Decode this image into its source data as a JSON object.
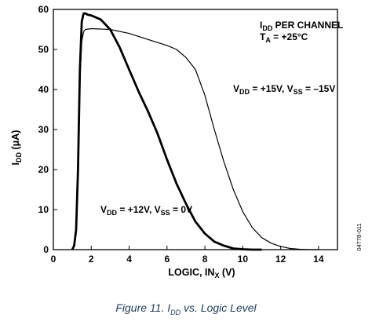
{
  "chart_data": {
    "type": "line",
    "xlabel": "LOGIC, IN",
    "xlabel_sub": "X",
    "xlabel_unit": " (V)",
    "ylabel": "I",
    "ylabel_sub": "DD",
    "ylabel_unit": " (μA)",
    "xlim": [
      0,
      15
    ],
    "ylim": [
      0,
      60
    ],
    "xticks": [
      0,
      2,
      4,
      6,
      8,
      10,
      12,
      14
    ],
    "yticks": [
      0,
      10,
      20,
      30,
      40,
      50,
      60
    ],
    "grid": false,
    "title_block": {
      "line1_main": "I",
      "line1_sub": "DD",
      "line1_rest": " PER CHANNEL",
      "line2_main": "T",
      "line2_sub": "A",
      "line2_rest": " = +25°C"
    },
    "series": [
      {
        "label_parts": [
          "V",
          "DD",
          " = +15V, V",
          "SS",
          " = –15V"
        ],
        "weight": "thin",
        "x": [
          1.0,
          1.1,
          1.2,
          1.3,
          1.4,
          1.5,
          1.6,
          1.7,
          2,
          3,
          4,
          5,
          6,
          6.5,
          7,
          7.5,
          8,
          8.5,
          9,
          9.5,
          10,
          10.5,
          11,
          11.5,
          12,
          12.5,
          13,
          13.5,
          14
        ],
        "y": [
          0,
          1,
          5,
          20,
          42,
          52,
          54.5,
          55,
          55.2,
          55,
          54,
          52.5,
          51,
          50,
          48,
          45,
          38.5,
          30,
          22,
          15,
          9.5,
          5.5,
          3,
          1.6,
          0.8,
          0.3,
          0.1,
          0,
          0
        ]
      },
      {
        "label_parts": [
          "V",
          "DD",
          " = +12V, V",
          "SS",
          " = 0V"
        ],
        "weight": "thick",
        "x": [
          1.0,
          1.1,
          1.2,
          1.3,
          1.4,
          1.5,
          1.6,
          1.7,
          1.8,
          2,
          2.5,
          3,
          3.5,
          4,
          4.5,
          5,
          5.5,
          6,
          6.5,
          7,
          7.5,
          8,
          8.5,
          9,
          9.5,
          10,
          10.5,
          11
        ],
        "y": [
          0,
          1,
          5,
          20,
          45,
          57,
          59,
          59,
          58.7,
          58.5,
          57.5,
          55,
          50.5,
          45,
          39.5,
          34.5,
          29,
          22.5,
          16.5,
          11.5,
          7,
          4,
          2,
          1,
          0.3,
          0.1,
          0,
          0
        ]
      }
    ],
    "side_code": "04778-011"
  },
  "caption": {
    "prefix": "Figure 11. I",
    "sub": "DD",
    "suffix": " vs. Logic Level"
  }
}
